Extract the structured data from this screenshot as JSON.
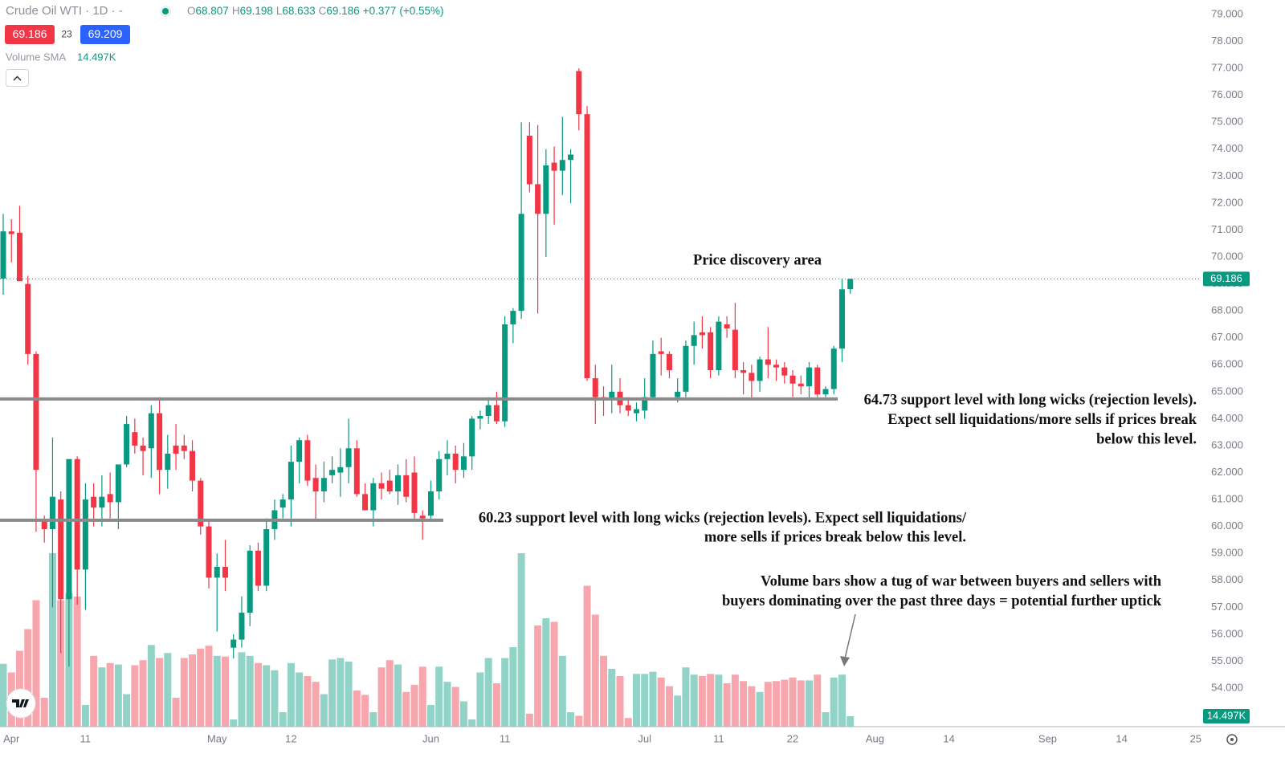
{
  "chart_data": {
    "type": "candlestick",
    "legend": {
      "symbol": "Crude Oil WTI · 1D · -",
      "o_label": "O",
      "h_label": "H",
      "l_label": "L",
      "c_label": "C",
      "change": "+0.377",
      "change_pct": "(+0.55%)"
    },
    "bid": 69.186,
    "spread": 23,
    "ask": 69.209,
    "volume_title": "Volume SMA",
    "volume_value_label": "14.497K",
    "ylim": [
      54,
      79
    ],
    "yticks": [
      {
        "value": 79,
        "label": "79.000"
      },
      {
        "value": 78,
        "label": "78.000"
      },
      {
        "value": 77,
        "label": "77.000"
      },
      {
        "value": 76,
        "label": "76.000"
      },
      {
        "value": 75,
        "label": "75.000"
      },
      {
        "value": 74,
        "label": "74.000"
      },
      {
        "value": 73,
        "label": "73.000"
      },
      {
        "value": 72,
        "label": "72.000"
      },
      {
        "value": 71,
        "label": "71.000"
      },
      {
        "value": 70,
        "label": "70.000"
      },
      {
        "value": 69,
        "label": "69.000"
      },
      {
        "value": 68,
        "label": "68.000"
      },
      {
        "value": 67,
        "label": "67.000"
      },
      {
        "value": 66,
        "label": "66.000"
      },
      {
        "value": 65,
        "label": "65.000"
      },
      {
        "value": 64,
        "label": "64.000"
      },
      {
        "value": 63,
        "label": "63.000"
      },
      {
        "value": 62,
        "label": "62.000"
      },
      {
        "value": 61,
        "label": "61.000"
      },
      {
        "value": 60,
        "label": "60.000"
      },
      {
        "value": 59,
        "label": "59.000"
      },
      {
        "value": 58,
        "label": "58.000"
      },
      {
        "value": 57,
        "label": "57.000"
      },
      {
        "value": 56,
        "label": "56.000"
      },
      {
        "value": 55,
        "label": "55.000"
      },
      {
        "value": 54,
        "label": "54.000"
      }
    ],
    "xticks": [
      {
        "value": 1,
        "label": "Apr"
      },
      {
        "value": 10,
        "label": "11"
      },
      {
        "value": 26,
        "label": "May"
      },
      {
        "value": 35,
        "label": "12"
      },
      {
        "value": 52,
        "label": "Jun"
      },
      {
        "value": 61,
        "label": "11"
      },
      {
        "value": 78,
        "label": "Jul"
      },
      {
        "value": 87,
        "label": "11"
      },
      {
        "value": 96,
        "label": "22"
      },
      {
        "value": 106,
        "label": "Aug"
      },
      {
        "value": 115,
        "label": "14"
      },
      {
        "value": 127,
        "label": "Sep"
      },
      {
        "value": 136,
        "label": "14"
      },
      {
        "value": 145,
        "label": "25"
      }
    ],
    "up_color": "#089981",
    "down_color": "#f23645",
    "volume_up_color": "#92d3c8",
    "volume_down_color": "#f7a6ae",
    "grid": false,
    "open": [
      69.2,
      70.95,
      70.9,
      69.0,
      66.4,
      60.2,
      59.9,
      61.0,
      57.3,
      62.5,
      58.4,
      61.1,
      60.7,
      61.2,
      60.9,
      62.3,
      63.5,
      63.0,
      62.9,
      64.2,
      62.1,
      63.0,
      63.0,
      62.8,
      61.7,
      60.0,
      58.1,
      58.5,
      55.5,
      55.8,
      56.8,
      59.1,
      57.8,
      59.9,
      60.7,
      61.0,
      62.4,
      63.2,
      61.8,
      61.3,
      61.9,
      62.0,
      62.2,
      62.9,
      61.2,
      60.6,
      61.6,
      61.7,
      61.3,
      61.9,
      62.0,
      60.4,
      60.4,
      61.3,
      62.5,
      62.7,
      62.1,
      62.6,
      64.0,
      64.1,
      64.5,
      63.9,
      67.5,
      68.0,
      74.5,
      72.7,
      71.6,
      73.5,
      73.2,
      73.6,
      76.9,
      75.3,
      65.5,
      64.8,
      64.7,
      65.0,
      64.5,
      64.2,
      64.3,
      64.8,
      66.5,
      66.4,
      64.8,
      65.0,
      66.7,
      67.2,
      67.2,
      65.8,
      67.5,
      67.3,
      65.8,
      65.7,
      65.4,
      66.2,
      66.0,
      65.9,
      65.6,
      65.3,
      65.2,
      65.9,
      64.9,
      65.1,
      66.6,
      68.807
    ],
    "high": [
      71.6,
      71.4,
      71.9,
      69.3,
      66.5,
      60.4,
      63.3,
      61.3,
      62.5,
      62.6,
      61.6,
      61.6,
      61.9,
      62.0,
      62.3,
      64.1,
      64.0,
      63.3,
      64.5,
      64.8,
      63.4,
      63.8,
      63.4,
      63.2,
      61.8,
      60.2,
      59.0,
      59.5,
      56.0,
      57.4,
      59.3,
      59.4,
      60.3,
      61.0,
      61.2,
      63.0,
      63.3,
      63.4,
      62.3,
      62.4,
      62.6,
      62.9,
      64.0,
      63.2,
      61.6,
      61.8,
      62.0,
      62.1,
      62.3,
      62.5,
      62.6,
      60.6,
      61.7,
      62.8,
      63.2,
      63.0,
      63.1,
      64.1,
      64.3,
      64.8,
      65.0,
      67.8,
      68.1,
      75.0,
      75.0,
      74.9,
      74.0,
      74.1,
      75.2,
      74.0,
      77.0,
      75.6,
      66.0,
      65.2,
      66.0,
      65.5,
      64.8,
      64.6,
      65.5,
      66.9,
      67.0,
      66.5,
      65.5,
      66.9,
      67.6,
      67.8,
      67.4,
      67.8,
      67.8,
      68.3,
      66.1,
      66.0,
      66.3,
      67.4,
      66.2,
      66.1,
      65.8,
      65.6,
      66.1,
      66.0,
      65.2,
      66.7,
      69.2,
      69.198
    ],
    "low": [
      68.6,
      69.8,
      69.2,
      66.0,
      59.8,
      59.4,
      57.0,
      55.3,
      54.8,
      57.1,
      56.9,
      60.0,
      60.0,
      60.3,
      59.9,
      62.2,
      62.7,
      61.9,
      61.8,
      61.2,
      61.4,
      62.1,
      62.5,
      61.3,
      59.7,
      57.7,
      56.1,
      57.6,
      55.1,
      55.5,
      56.3,
      57.6,
      57.6,
      59.5,
      60.3,
      60.0,
      61.6,
      61.5,
      60.2,
      60.9,
      61.6,
      61.1,
      61.6,
      61.1,
      60.6,
      60.0,
      61.0,
      61.2,
      60.8,
      60.9,
      60.2,
      59.5,
      60.2,
      61.0,
      61.9,
      61.6,
      61.8,
      62.1,
      63.6,
      63.8,
      63.8,
      63.7,
      66.8,
      67.7,
      72.4,
      67.9,
      70.0,
      71.2,
      72.3,
      72.0,
      74.7,
      65.4,
      63.8,
      64.1,
      64.2,
      64.2,
      64.1,
      63.9,
      64.0,
      64.7,
      65.6,
      65.5,
      64.6,
      64.8,
      66.0,
      66.6,
      65.5,
      65.6,
      67.0,
      65.5,
      64.9,
      64.7,
      65.0,
      65.5,
      65.4,
      65.3,
      64.8,
      64.9,
      64.7,
      64.8,
      64.8,
      64.9,
      66.1,
      68.633
    ],
    "close": [
      70.95,
      70.85,
      69.1,
      66.4,
      62.1,
      59.9,
      61.1,
      57.3,
      62.5,
      58.4,
      61.0,
      60.7,
      61.1,
      60.9,
      62.3,
      63.8,
      63.0,
      62.8,
      64.2,
      62.1,
      62.7,
      62.7,
      62.8,
      61.7,
      60.0,
      58.1,
      58.5,
      58.1,
      55.8,
      56.8,
      59.1,
      57.8,
      59.9,
      60.6,
      61.0,
      62.4,
      63.2,
      61.7,
      61.3,
      61.8,
      62.1,
      62.2,
      62.9,
      61.2,
      60.6,
      61.6,
      61.4,
      61.3,
      61.9,
      61.1,
      60.5,
      60.3,
      61.3,
      62.5,
      62.7,
      62.1,
      62.6,
      64.0,
      64.1,
      64.5,
      63.9,
      67.5,
      68.0,
      71.6,
      72.7,
      71.6,
      73.4,
      73.2,
      73.6,
      73.8,
      75.3,
      65.5,
      64.8,
      64.7,
      65.0,
      64.5,
      64.3,
      64.35,
      64.8,
      66.4,
      66.4,
      65.8,
      65.0,
      66.7,
      67.1,
      67.1,
      65.8,
      67.6,
      67.35,
      65.8,
      65.7,
      65.4,
      66.2,
      66.0,
      65.9,
      65.6,
      65.3,
      65.2,
      65.9,
      64.9,
      65.1,
      66.6,
      68.8,
      69.186
    ],
    "volume": [
      87,
      75,
      105,
      135,
      175,
      40,
      240,
      175,
      185,
      180,
      30,
      98,
      82,
      88,
      86,
      45,
      85,
      92,
      113,
      95,
      102,
      40,
      95,
      100,
      108,
      112,
      98,
      97,
      10,
      103,
      98,
      88,
      85,
      78,
      20,
      88,
      75,
      70,
      62,
      45,
      93,
      95,
      90,
      50,
      44,
      20,
      82,
      92,
      86,
      48,
      58,
      83,
      30,
      83,
      62,
      55,
      35,
      10,
      75,
      95,
      60,
      95,
      110,
      240,
      18,
      140,
      150,
      145,
      98,
      20,
      15,
      195,
      155,
      98,
      80,
      70,
      12,
      73,
      73,
      76,
      68,
      56,
      43,
      82,
      72,
      70,
      73,
      72,
      60,
      72,
      63,
      56,
      48,
      62,
      63,
      65,
      68,
      64,
      64,
      72,
      20,
      68,
      72,
      14.497
    ],
    "support_levels": [
      64.73,
      60.23
    ],
    "annotations": [
      {
        "lines": [
          "Price discovery area"
        ]
      },
      {
        "lines": [
          "64.73 support level with long wicks (rejection levels).",
          "Expect sell liquidations/more sells if prices break",
          "below this level."
        ]
      },
      {
        "lines": [
          "60.23 support level with long wicks (rejection levels). Expect sell liquidations/",
          "more sells if prices break below this level."
        ]
      },
      {
        "lines": [
          "Volume bars show a tug of war between buyers and sellers with",
          "buyers dominating over the past three days = potential further uptick"
        ]
      }
    ]
  }
}
